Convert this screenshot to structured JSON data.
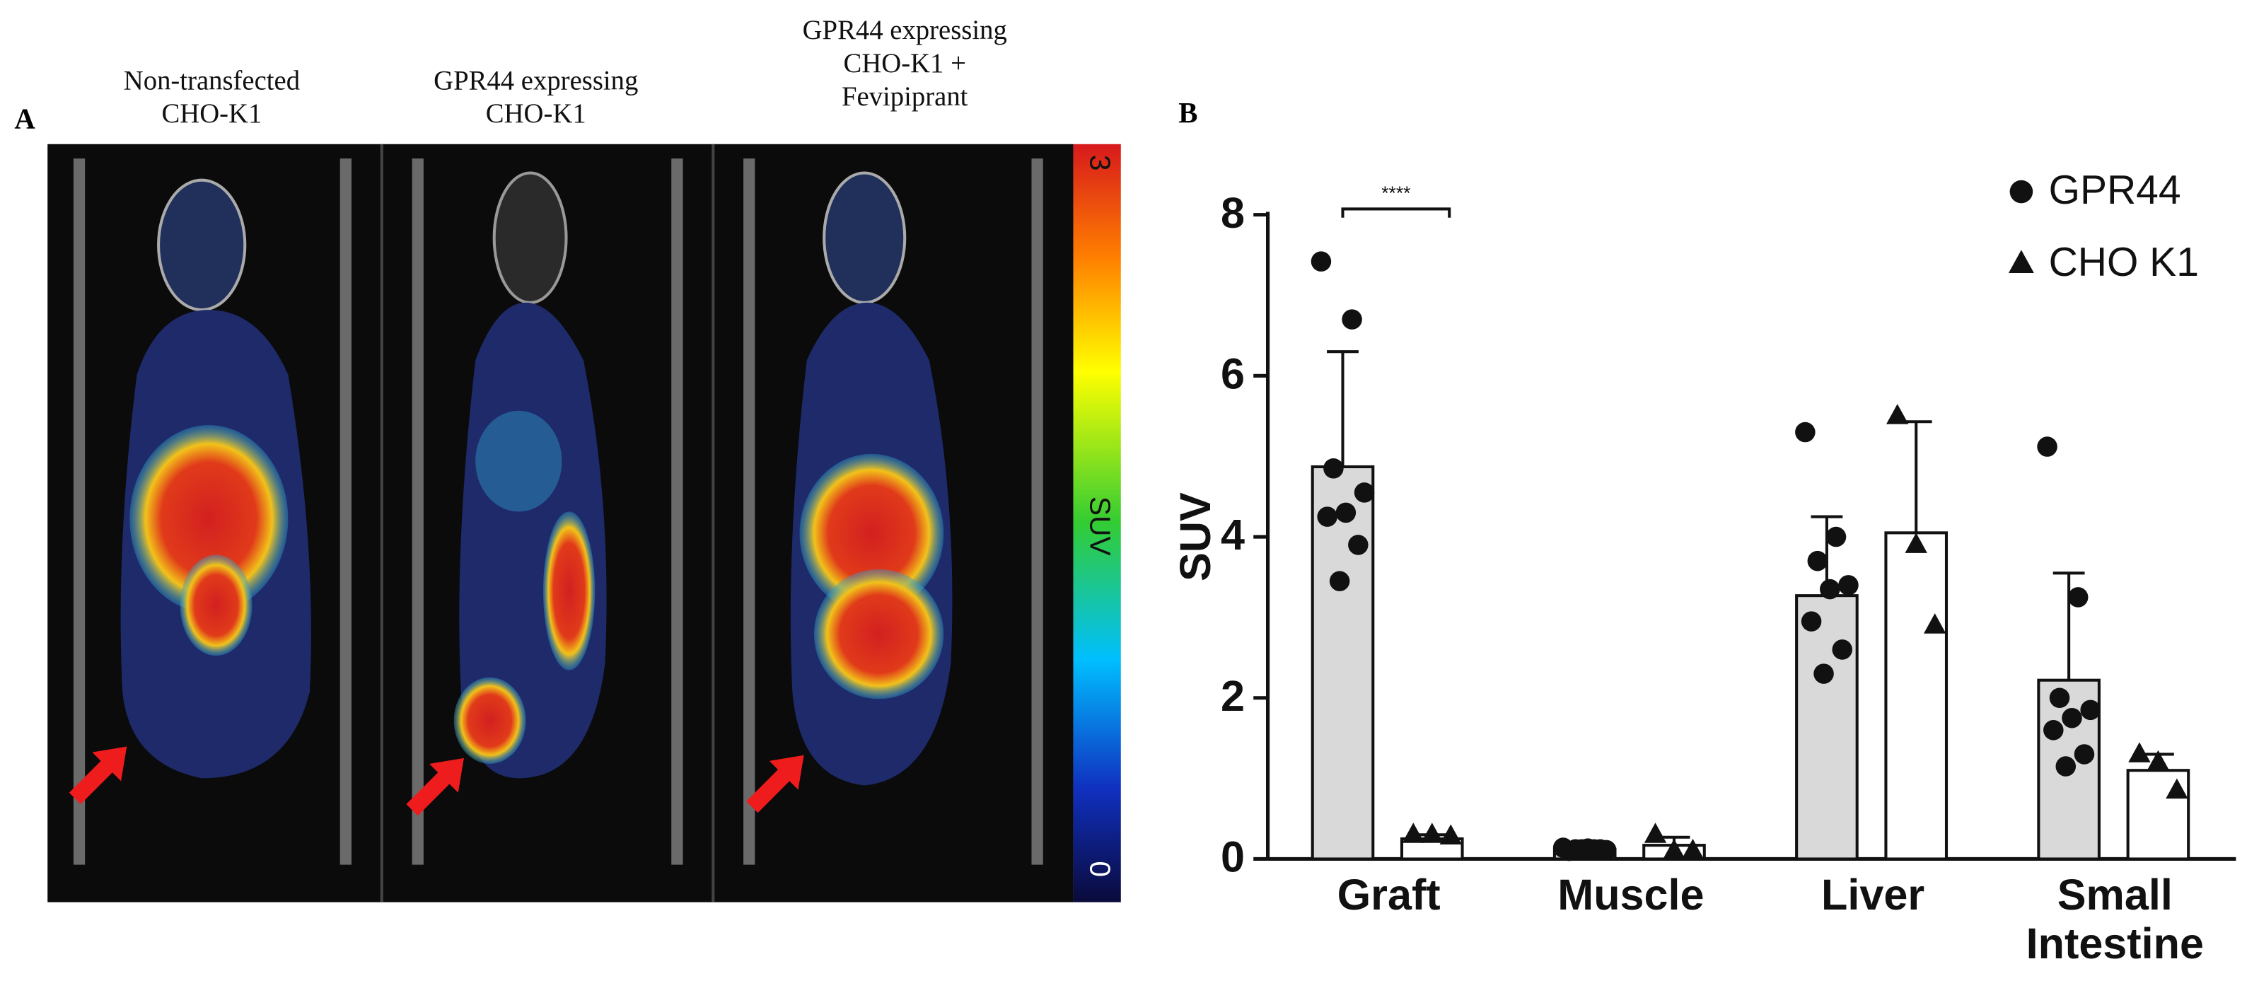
{
  "panel_a": {
    "label": "A",
    "titles": [
      "Non-transfected CHO-K1",
      "GPR44 expressing CHO-K1",
      "GPR44 expressing CHO-K1 + Fevipiprant"
    ],
    "colorbar": {
      "max": 3,
      "min": 0,
      "label": "SUV"
    }
  },
  "chart_data": {
    "type": "bar",
    "panel_label": "B",
    "y_label": "SUV",
    "categories": [
      "Graft",
      "Muscle",
      "Liver",
      "Small Intestine"
    ],
    "ylim": [
      0,
      8
    ],
    "yticks": [
      0,
      2,
      4,
      6,
      8
    ],
    "legend": "upper right",
    "annotations": [
      "****"
    ],
    "series": [
      {
        "name": "GPR44",
        "color": "#d9d9d9",
        "marker": "circle",
        "values": [
          4.87,
          0.12,
          3.27,
          2.22
        ],
        "errors": [
          1.43,
          0.04,
          0.98,
          1.33
        ],
        "points": [
          [
            7.42,
            6.7,
            4.85,
            4.55,
            4.3,
            4.25,
            3.9,
            3.45
          ],
          [
            0.14,
            0.12,
            0.12,
            0.11,
            0.13,
            0.1,
            0.12,
            0.12
          ],
          [
            5.3,
            4.0,
            3.7,
            3.4,
            3.35,
            2.95,
            2.6,
            2.3
          ],
          [
            5.12,
            3.25,
            2.0,
            1.85,
            1.75,
            1.6,
            1.3,
            1.15
          ]
        ]
      },
      {
        "name": "CHO K1",
        "color": "#ffffff",
        "marker": "triangle",
        "values": [
          0.25,
          0.17,
          4.05,
          1.1
        ],
        "errors": [
          0.05,
          0.1,
          1.38,
          0.2
        ],
        "points": [
          [
            0.3,
            0.3,
            0.28
          ],
          [
            0.3,
            0.1,
            0.1
          ],
          [
            5.5,
            3.9,
            2.9
          ],
          [
            1.3,
            1.2,
            0.85
          ]
        ]
      }
    ]
  }
}
